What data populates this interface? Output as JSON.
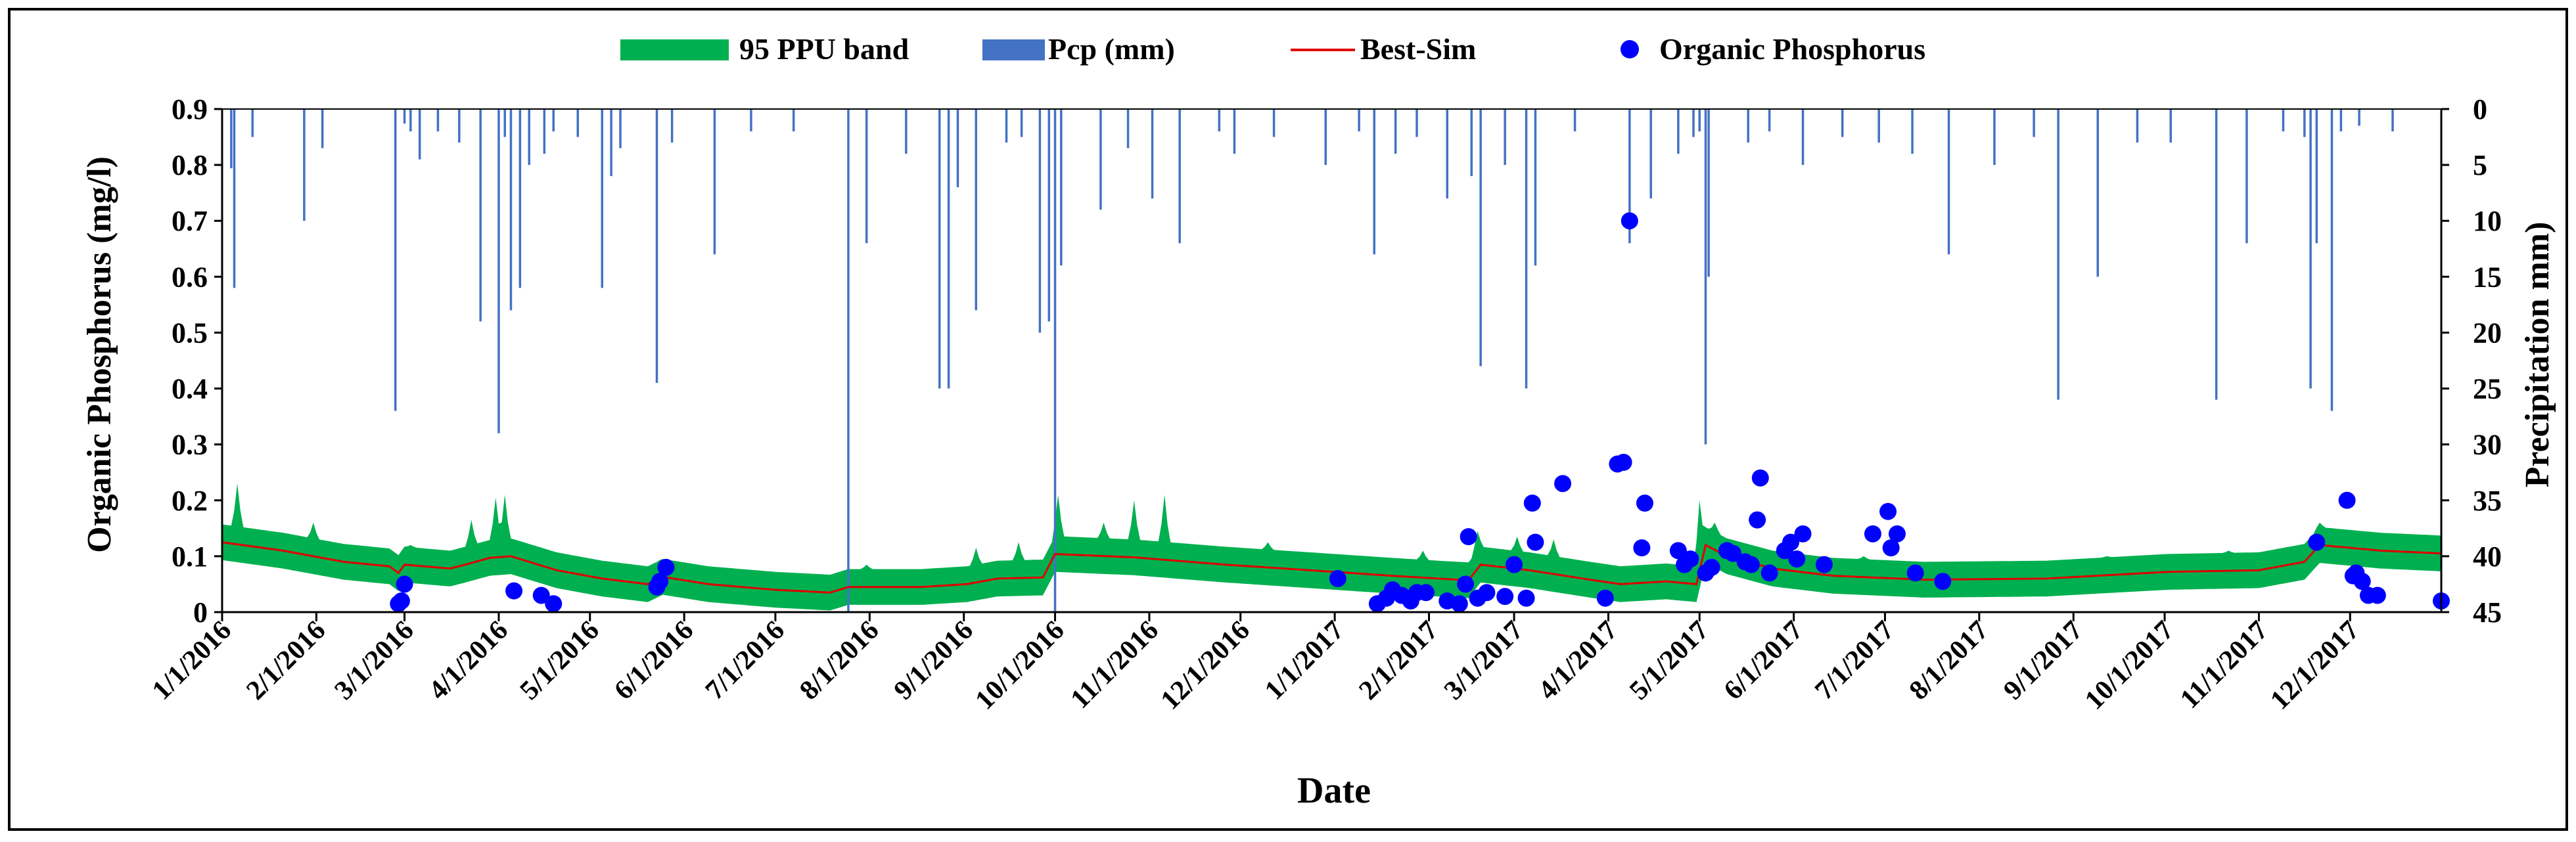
{
  "chart_data": {
    "type": "line",
    "title": "",
    "xlabel": "Date",
    "ylabel": "Organic Phosphorus (mg/l)",
    "y2label": "Precipitation mm)",
    "ylim": [
      0,
      0.9
    ],
    "y2lim": [
      0,
      45
    ],
    "y2_inverted": true,
    "yticks": [
      "0",
      "0.1",
      "0.2",
      "0.3",
      "0.4",
      "0.5",
      "0.6",
      "0.7",
      "0.8",
      "0.9"
    ],
    "y2ticks": [
      "0",
      "5",
      "10",
      "15",
      "20",
      "25",
      "30",
      "35",
      "40",
      "45"
    ],
    "x_range_days": [
      0,
      730
    ],
    "xticks": [
      {
        "label": "1/1/2016",
        "day": 0
      },
      {
        "label": "2/1/2016",
        "day": 31
      },
      {
        "label": "3/1/2016",
        "day": 60
      },
      {
        "label": "4/1/2016",
        "day": 91
      },
      {
        "label": "5/1/2016",
        "day": 121
      },
      {
        "label": "6/1/2016",
        "day": 152
      },
      {
        "label": "7/1/2016",
        "day": 182
      },
      {
        "label": "8/1/2016",
        "day": 213
      },
      {
        "label": "9/1/2016",
        "day": 244
      },
      {
        "label": "10/1/2016",
        "day": 274
      },
      {
        "label": "11/1/2016",
        "day": 305
      },
      {
        "label": "12/1/2016",
        "day": 335
      },
      {
        "label": "1/1/2017",
        "day": 366
      },
      {
        "label": "2/1/2017",
        "day": 397
      },
      {
        "label": "3/1/2017",
        "day": 425
      },
      {
        "label": "4/1/2017",
        "day": 456
      },
      {
        "label": "5/1/2017",
        "day": 486
      },
      {
        "label": "6/1/2017",
        "day": 517
      },
      {
        "label": "7/1/2017",
        "day": 547
      },
      {
        "label": "8/1/2017",
        "day": 578
      },
      {
        "label": "9/1/2017",
        "day": 609
      },
      {
        "label": "10/1/2017",
        "day": 639
      },
      {
        "label": "11/1/2017",
        "day": 670
      },
      {
        "label": "12/1/2017",
        "day": 700
      }
    ],
    "legend": {
      "placement": "top",
      "entries": [
        "95 PPU band",
        "Pcp (mm)",
        "Best-Sim",
        "Organic Phosphorus"
      ]
    },
    "colors": {
      "band": "#00b050",
      "precip": "#4472c4",
      "best_sim": "#e00000",
      "observed": "#0000ff"
    },
    "series": [
      {
        "name": "Best-Sim",
        "type": "line",
        "points": [
          [
            0,
            0.125
          ],
          [
            20,
            0.11
          ],
          [
            40,
            0.09
          ],
          [
            55,
            0.082
          ],
          [
            58,
            0.07
          ],
          [
            60,
            0.085
          ],
          [
            75,
            0.078
          ],
          [
            80,
            0.085
          ],
          [
            88,
            0.097
          ],
          [
            95,
            0.1
          ],
          [
            110,
            0.075
          ],
          [
            125,
            0.06
          ],
          [
            140,
            0.05
          ],
          [
            145,
            0.063
          ],
          [
            160,
            0.05
          ],
          [
            182,
            0.04
          ],
          [
            200,
            0.035
          ],
          [
            206,
            0.045
          ],
          [
            230,
            0.045
          ],
          [
            245,
            0.05
          ],
          [
            255,
            0.06
          ],
          [
            270,
            0.062
          ],
          [
            274,
            0.104
          ],
          [
            300,
            0.098
          ],
          [
            330,
            0.085
          ],
          [
            366,
            0.072
          ],
          [
            385,
            0.065
          ],
          [
            400,
            0.06
          ],
          [
            410,
            0.057
          ],
          [
            414,
            0.085
          ],
          [
            430,
            0.075
          ],
          [
            450,
            0.058
          ],
          [
            460,
            0.05
          ],
          [
            475,
            0.055
          ],
          [
            485,
            0.05
          ],
          [
            488,
            0.12
          ],
          [
            495,
            0.1
          ],
          [
            510,
            0.078
          ],
          [
            530,
            0.065
          ],
          [
            560,
            0.058
          ],
          [
            600,
            0.06
          ],
          [
            640,
            0.072
          ],
          [
            670,
            0.075
          ],
          [
            685,
            0.09
          ],
          [
            690,
            0.12
          ],
          [
            710,
            0.11
          ],
          [
            730,
            0.105
          ]
        ]
      },
      {
        "name": "95 PPU band",
        "type": "area",
        "band_width_mgl": 0.032,
        "spikes": [
          [
            5,
            0.23
          ],
          [
            30,
            0.16
          ],
          [
            62,
            0.12
          ],
          [
            82,
            0.165
          ],
          [
            90,
            0.205
          ],
          [
            93,
            0.21
          ],
          [
            115,
            0.09
          ],
          [
            145,
            0.095
          ],
          [
            165,
            0.07
          ],
          [
            212,
            0.085
          ],
          [
            248,
            0.115
          ],
          [
            262,
            0.125
          ],
          [
            275,
            0.21
          ],
          [
            290,
            0.16
          ],
          [
            300,
            0.2
          ],
          [
            310,
            0.21
          ],
          [
            344,
            0.125
          ],
          [
            395,
            0.11
          ],
          [
            413,
            0.145
          ],
          [
            426,
            0.135
          ],
          [
            438,
            0.13
          ],
          [
            486,
            0.2
          ],
          [
            491,
            0.16
          ],
          [
            540,
            0.1
          ],
          [
            575,
            0.09
          ],
          [
            620,
            0.1
          ],
          [
            660,
            0.11
          ],
          [
            690,
            0.16
          ]
        ]
      },
      {
        "name": "Pcp (mm)",
        "type": "bar",
        "axis": "secondary",
        "values": [
          [
            3,
            5.3
          ],
          [
            4,
            16
          ],
          [
            10,
            2.5
          ],
          [
            27,
            10
          ],
          [
            33,
            3.5
          ],
          [
            57,
            27
          ],
          [
            60,
            1.3
          ],
          [
            62,
            2
          ],
          [
            65,
            4.5
          ],
          [
            71,
            2
          ],
          [
            78,
            3
          ],
          [
            85,
            19
          ],
          [
            91,
            29
          ],
          [
            93,
            2.5
          ],
          [
            95,
            18
          ],
          [
            98,
            16
          ],
          [
            101,
            5
          ],
          [
            106,
            4
          ],
          [
            109,
            2
          ],
          [
            117,
            2.5
          ],
          [
            125,
            16
          ],
          [
            128,
            6
          ],
          [
            131,
            3.5
          ],
          [
            143,
            24.5
          ],
          [
            148,
            3
          ],
          [
            162,
            13
          ],
          [
            174,
            2
          ],
          [
            188,
            2
          ],
          [
            206,
            45
          ],
          [
            212,
            12
          ],
          [
            225,
            4
          ],
          [
            236,
            25
          ],
          [
            239,
            25
          ],
          [
            242,
            7
          ],
          [
            248,
            18
          ],
          [
            258,
            3
          ],
          [
            263,
            2.5
          ],
          [
            269,
            20
          ],
          [
            272,
            19
          ],
          [
            274,
            45
          ],
          [
            276,
            14
          ],
          [
            289,
            9
          ],
          [
            298,
            3.5
          ],
          [
            306,
            8
          ],
          [
            315,
            12
          ],
          [
            328,
            2
          ],
          [
            333,
            4
          ],
          [
            346,
            2.5
          ],
          [
            363,
            5
          ],
          [
            374,
            2
          ],
          [
            379,
            13
          ],
          [
            386,
            4
          ],
          [
            393,
            2.5
          ],
          [
            403,
            8
          ],
          [
            411,
            6
          ],
          [
            414,
            23
          ],
          [
            422,
            5
          ],
          [
            429,
            25
          ],
          [
            432,
            14
          ],
          [
            445,
            2
          ],
          [
            463,
            12
          ],
          [
            470,
            8
          ],
          [
            479,
            4
          ],
          [
            484,
            2.5
          ],
          [
            486,
            2
          ],
          [
            488,
            30
          ],
          [
            489,
            15
          ],
          [
            502,
            3
          ],
          [
            509,
            2
          ],
          [
            520,
            5
          ],
          [
            533,
            2.5
          ],
          [
            545,
            3
          ],
          [
            556,
            4
          ],
          [
            568,
            13
          ],
          [
            583,
            5
          ],
          [
            596,
            2.5
          ],
          [
            604,
            26
          ],
          [
            617,
            15
          ],
          [
            630,
            3
          ],
          [
            641,
            3
          ],
          [
            656,
            26
          ],
          [
            666,
            12
          ],
          [
            678,
            2
          ],
          [
            685,
            2.5
          ],
          [
            687,
            25
          ],
          [
            689,
            12
          ],
          [
            694,
            27
          ],
          [
            697,
            2
          ],
          [
            703,
            1.5
          ],
          [
            714,
            2
          ]
        ]
      },
      {
        "name": "Organic Phosphorus",
        "type": "scatter",
        "points": [
          [
            58,
            0.015
          ],
          [
            59,
            0.02
          ],
          [
            60,
            0.05
          ],
          [
            96,
            0.038
          ],
          [
            105,
            0.03
          ],
          [
            109,
            0.015
          ],
          [
            143,
            0.045
          ],
          [
            144,
            0.055
          ],
          [
            146,
            0.08
          ],
          [
            367,
            0.06
          ],
          [
            380,
            0.015
          ],
          [
            383,
            0.025
          ],
          [
            385,
            0.04
          ],
          [
            388,
            0.03
          ],
          [
            391,
            0.02
          ],
          [
            393,
            0.035
          ],
          [
            396,
            0.035
          ],
          [
            403,
            0.02
          ],
          [
            407,
            0.015
          ],
          [
            409,
            0.05
          ],
          [
            410,
            0.135
          ],
          [
            413,
            0.025
          ],
          [
            416,
            0.035
          ],
          [
            422,
            0.028
          ],
          [
            425,
            0.085
          ],
          [
            429,
            0.025
          ],
          [
            431,
            0.195
          ],
          [
            432,
            0.125
          ],
          [
            441,
            0.23
          ],
          [
            455,
            0.025
          ],
          [
            459,
            0.265
          ],
          [
            461,
            0.268
          ],
          [
            463,
            0.7
          ],
          [
            467,
            0.115
          ],
          [
            468,
            0.195
          ],
          [
            479,
            0.11
          ],
          [
            481,
            0.085
          ],
          [
            483,
            0.095
          ],
          [
            488,
            0.07
          ],
          [
            490,
            0.08
          ],
          [
            495,
            0.11
          ],
          [
            497,
            0.105
          ],
          [
            501,
            0.09
          ],
          [
            503,
            0.085
          ],
          [
            505,
            0.165
          ],
          [
            506,
            0.24
          ],
          [
            509,
            0.07
          ],
          [
            514,
            0.11
          ],
          [
            516,
            0.125
          ],
          [
            518,
            0.095
          ],
          [
            520,
            0.14
          ],
          [
            527,
            0.085
          ],
          [
            543,
            0.14
          ],
          [
            548,
            0.18
          ],
          [
            549,
            0.115
          ],
          [
            551,
            0.14
          ],
          [
            557,
            0.07
          ],
          [
            566,
            0.055
          ],
          [
            689,
            0.125
          ],
          [
            699,
            0.2
          ],
          [
            701,
            0.065
          ],
          [
            702,
            0.07
          ],
          [
            704,
            0.055
          ],
          [
            706,
            0.03
          ],
          [
            709,
            0.03
          ],
          [
            739,
            0.02
          ]
        ]
      }
    ]
  }
}
